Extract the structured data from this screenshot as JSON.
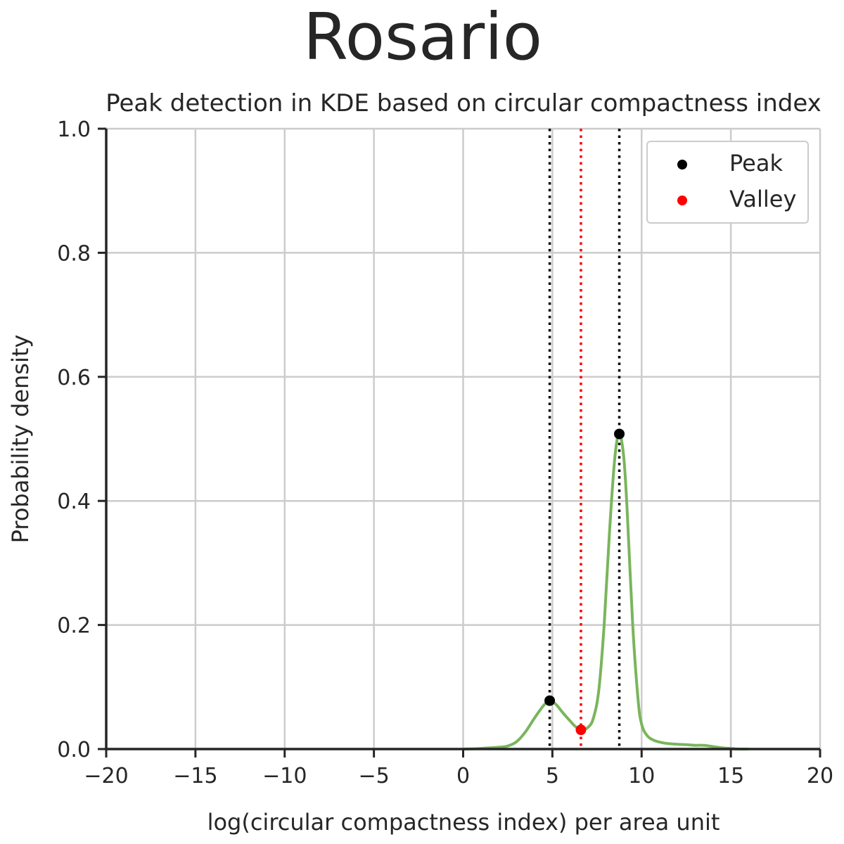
{
  "suptitle": "Rosario",
  "chart_data": {
    "type": "line",
    "title": "Peak detection in KDE based on circular compactness index",
    "xlabel": "log(circular compactness index) per area unit",
    "ylabel": "Probability density",
    "xlim": [
      -20,
      20
    ],
    "ylim": [
      0,
      1
    ],
    "x_ticks": [
      -20,
      -15,
      -10,
      -5,
      0,
      5,
      10,
      15,
      20
    ],
    "x_tick_labels": [
      "−20",
      "−15",
      "−10",
      "−5",
      "0",
      "5",
      "10",
      "15",
      "20"
    ],
    "y_ticks": [
      0,
      0.2,
      0.4,
      0.6,
      0.8,
      1.0
    ],
    "y_tick_labels": [
      "0.0",
      "0.2",
      "0.4",
      "0.6",
      "0.8",
      "1.0"
    ],
    "grid": true,
    "legend_position": "top-right",
    "series": [
      {
        "kind": "kde",
        "color": "#7ab55c",
        "x": [
          0,
          1,
          2,
          2.5,
          3,
          3.5,
          4,
          4.5,
          4.85,
          5.2,
          5.6,
          6.0,
          6.3,
          6.6,
          7.0,
          7.3,
          7.6,
          7.9,
          8.2,
          8.5,
          8.75,
          9.0,
          9.2,
          9.5,
          9.8,
          10.0,
          10.3,
          10.7,
          11.2,
          11.8,
          12.5,
          13.0,
          13.5,
          14.0,
          14.5,
          15.0,
          15.5,
          16.0
        ],
        "y": [
          0.0,
          0.001,
          0.003,
          0.005,
          0.012,
          0.028,
          0.05,
          0.07,
          0.078,
          0.072,
          0.058,
          0.045,
          0.036,
          0.031,
          0.035,
          0.05,
          0.095,
          0.2,
          0.35,
          0.47,
          0.508,
          0.47,
          0.38,
          0.2,
          0.08,
          0.04,
          0.022,
          0.014,
          0.01,
          0.008,
          0.007,
          0.006,
          0.006,
          0.004,
          0.002,
          0.001,
          0.0,
          0.0
        ]
      }
    ],
    "peaks": {
      "name": "Peak",
      "color": "#000000",
      "x": [
        4.85,
        8.75
      ],
      "y": [
        0.078,
        0.508
      ]
    },
    "valleys": {
      "name": "Valley",
      "color": "#ff0000",
      "x": [
        6.6
      ],
      "y": [
        0.031
      ]
    },
    "vlines": [
      {
        "x": 4.85,
        "color": "#000000",
        "style": "dotted"
      },
      {
        "x": 6.6,
        "color": "#ff0000",
        "style": "dotted"
      },
      {
        "x": 8.75,
        "color": "#000000",
        "style": "dotted"
      }
    ]
  }
}
